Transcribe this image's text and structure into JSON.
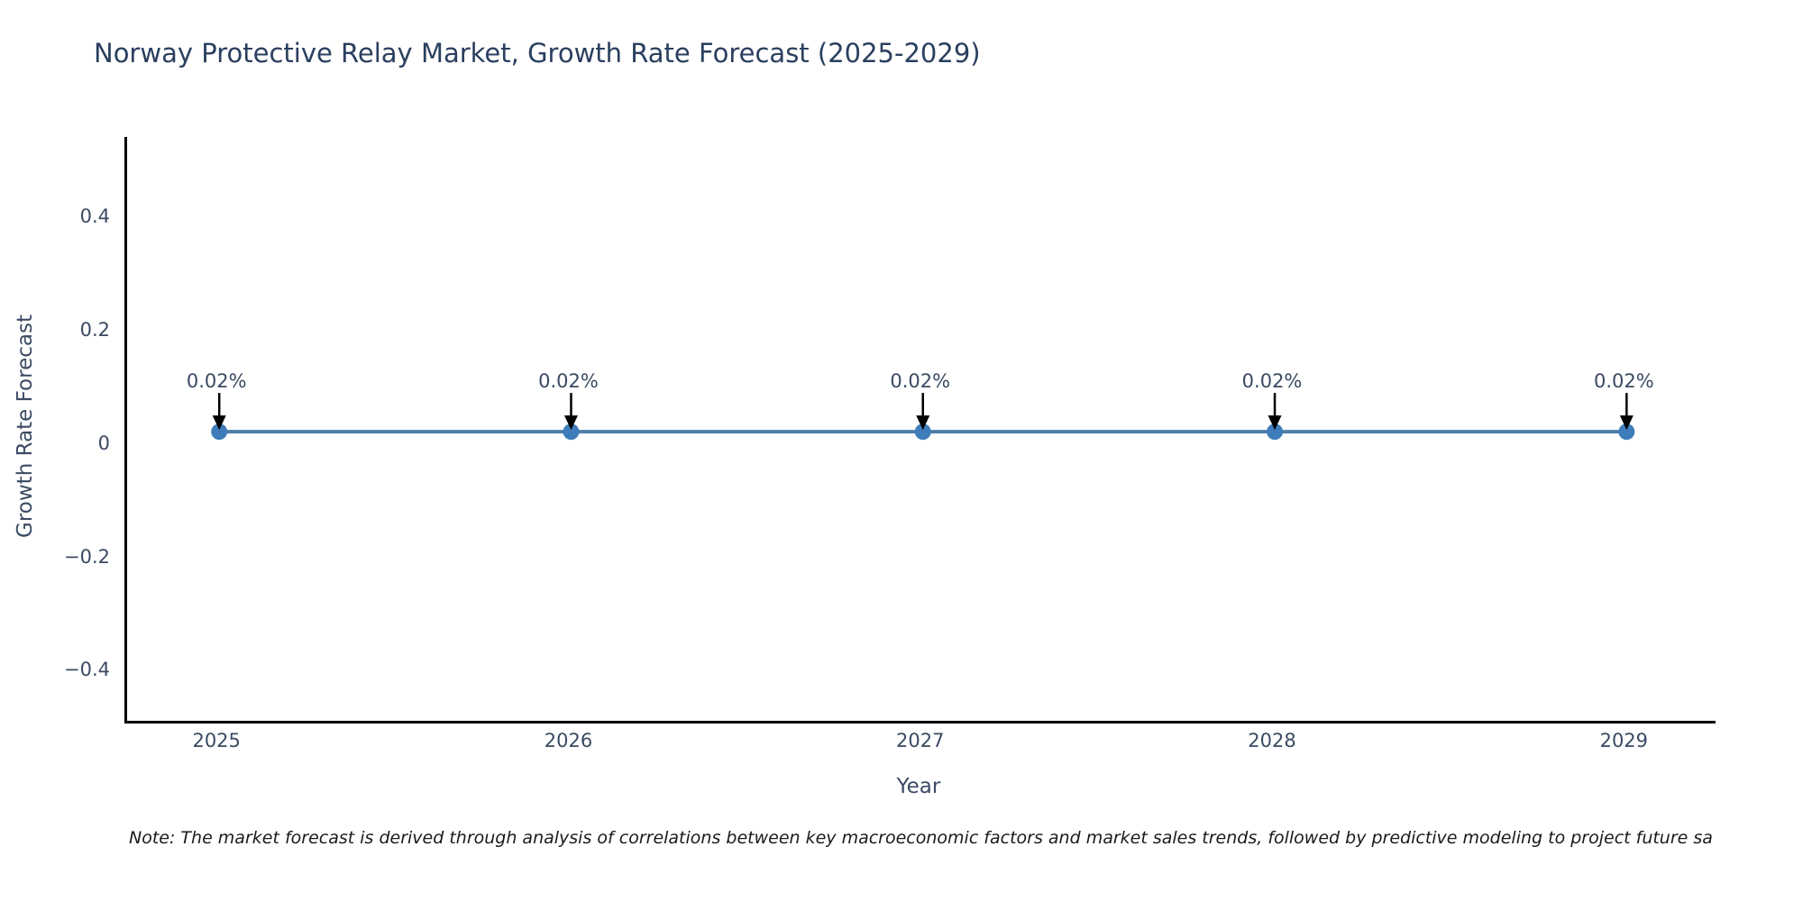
{
  "chart_data": {
    "type": "line",
    "title": "Norway Protective Relay Market, Growth Rate Forecast (2025-2029)",
    "xlabel": "Year",
    "ylabel": "Growth Rate Forecast",
    "categories": [
      "2025",
      "2026",
      "2027",
      "2028",
      "2029"
    ],
    "values": [
      0.02,
      0.02,
      0.02,
      0.02,
      0.02
    ],
    "point_labels": [
      "0.02%",
      "0.02%",
      "0.02%",
      "0.02%",
      "0.02%"
    ],
    "ytick_values": [
      0.4,
      0.2,
      0,
      -0.2,
      -0.4
    ],
    "ytick_labels": [
      "0.4",
      "0.2",
      "0",
      "−0.2",
      "−0.4"
    ],
    "ylim": [
      -0.49,
      0.54
    ],
    "grid": false,
    "legend": "none",
    "line_color": "#4d7ea8",
    "marker_color": "#3e7cba",
    "arrow_color": "#000000",
    "note": "Note: The market forecast is derived through analysis of correlations between key macroeconomic factors and market sales trends, followed by predictive modeling to project future sa"
  }
}
